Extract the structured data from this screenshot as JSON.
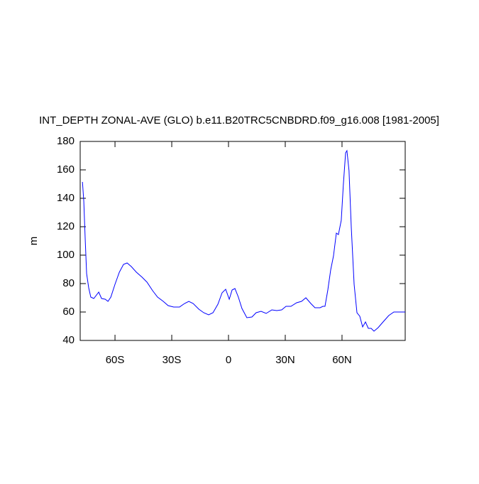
{
  "chart_data": {
    "type": "line",
    "title": "INT_DEPTH ZONAL-AVE (GLO) b.e11.B20TRC5CNBDRD.f09_g16.008 [1981-2005]",
    "y_label": "m",
    "x": [
      -77.2,
      -76.5,
      -75.7,
      -75,
      -73.9,
      -72.8,
      -71.2,
      -68.6,
      -67.1,
      -65.2,
      -63.7,
      -62.2,
      -60,
      -57.7,
      -55.5,
      -53.6,
      -51.4,
      -48.7,
      -45.7,
      -43.1,
      -40.1,
      -37.5,
      -34.5,
      -31.9,
      -29,
      -25.9,
      -23.2,
      -21,
      -18.7,
      -15.7,
      -13.1,
      -10.5,
      -8.2,
      -5.6,
      -3.4,
      -1.5,
      0.4,
      1.9,
      3.4,
      5.2,
      7.1,
      9.7,
      12.4,
      14.6,
      17.2,
      19.9,
      22.9,
      25.5,
      28.1,
      30.4,
      33,
      36,
      38.6,
      40.9,
      43.5,
      45.7,
      48.4,
      49.9,
      51,
      52.5,
      54,
      55.5,
      57,
      58.1,
      59.6,
      60.7,
      61.9,
      62.6,
      63.7,
      64.9,
      66.4,
      67.9,
      69.4,
      70.9,
      72.4,
      73.9,
      75.4,
      76.9,
      79.1,
      81.7,
      84.7,
      87.4,
      90.4,
      93.4
    ],
    "series": [
      {
        "color": "#0000ff",
        "values": [
          151.5,
          138,
          109.5,
          87,
          77,
          70.5,
          69.5,
          74,
          69.5,
          69,
          67.5,
          70.5,
          79.5,
          88,
          93.5,
          94.5,
          92,
          88,
          84.5,
          81,
          75,
          70.5,
          67.5,
          64.5,
          63.5,
          63.5,
          66,
          67.5,
          66,
          62,
          59.5,
          58,
          59.5,
          65.5,
          73.5,
          76,
          69,
          75.5,
          76.5,
          70.5,
          62.5,
          56,
          56.5,
          59.5,
          60.5,
          59,
          61.5,
          61,
          61.5,
          64,
          64,
          66.5,
          67.5,
          70,
          66,
          63,
          63,
          64,
          64,
          75.5,
          89.5,
          99.5,
          115.5,
          114.5,
          124.5,
          149.5,
          172,
          173.5,
          159.5,
          119.5,
          79.5,
          59.5,
          57,
          49.5,
          53,
          48.5,
          48.5,
          46.5,
          49,
          53,
          57.5,
          60,
          60,
          60
        ]
      }
    ],
    "xlim": [
      -78.4,
      93.4
    ],
    "xticks": [
      {
        "value": -60,
        "label": "60S"
      },
      {
        "value": -30,
        "label": "30S"
      },
      0,
      {
        "value": 30,
        "label": "30N"
      },
      {
        "value": 60,
        "label": "60N"
      }
    ],
    "ylim": [
      40,
      180
    ],
    "yticks": [
      40,
      60,
      80,
      100,
      120,
      140,
      160,
      180
    ]
  }
}
